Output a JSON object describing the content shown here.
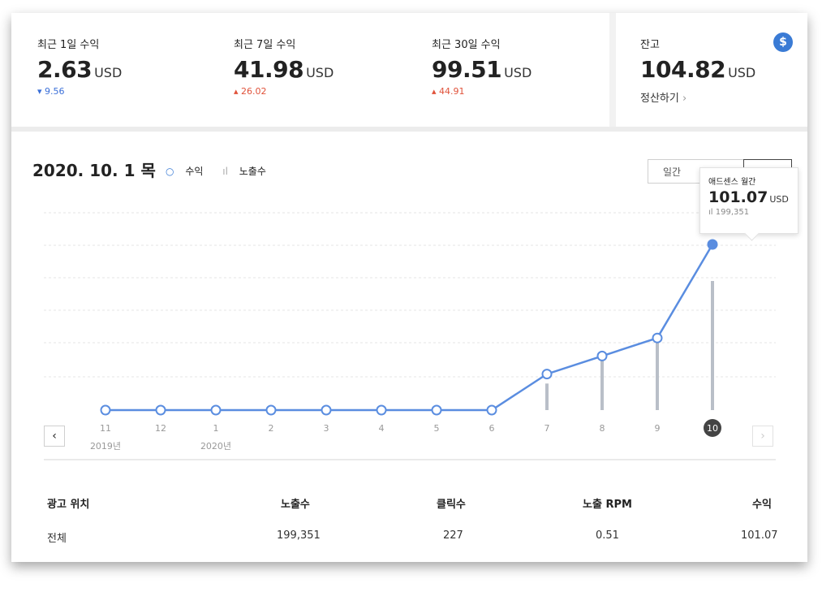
{
  "stats": [
    {
      "label": "최근 1일 수익",
      "value": "2.63",
      "unit": "USD",
      "change": "9.56",
      "direction": "down"
    },
    {
      "label": "최근 7일 수익",
      "value": "41.98",
      "unit": "USD",
      "change": "26.02",
      "direction": "up"
    },
    {
      "label": "최근 30일 수익",
      "value": "99.51",
      "unit": "USD",
      "change": "44.91",
      "direction": "up"
    }
  ],
  "balance": {
    "label": "잔고",
    "value": "104.82",
    "unit": "USD",
    "settle_link": "정산하기",
    "icon": "dollar-icon"
  },
  "header": {
    "date": "2020. 10. 1 목",
    "legend_revenue": "수익",
    "legend_impressions": "노출수",
    "btn_daily": "일간"
  },
  "tooltip": {
    "title": "애드센스 월간",
    "value": "101.07",
    "unit": "USD",
    "impressions": "199,351"
  },
  "chart_data": {
    "type": "line",
    "categories": [
      "11",
      "12",
      "1",
      "2",
      "3",
      "4",
      "5",
      "6",
      "7",
      "8",
      "9",
      "10"
    ],
    "year_labels": [
      {
        "index": 0,
        "text": "2019년"
      },
      {
        "index": 2,
        "text": "2020년"
      }
    ],
    "selected_index": 11,
    "series": [
      {
        "name": "수익",
        "type": "line",
        "values": [
          0,
          0,
          0,
          0,
          0,
          0,
          0,
          0,
          22,
          33,
          44,
          101.07
        ]
      },
      {
        "name": "노출수",
        "type": "bar",
        "values": [
          0,
          0,
          0,
          0,
          0,
          0,
          0,
          0,
          41000,
          83000,
          116000,
          199351
        ]
      }
    ],
    "grid": true,
    "colors": {
      "line": "#5a8de0",
      "bar": "#b9bfc8",
      "grid": "#e4e4e4"
    }
  },
  "table": {
    "headers": [
      "광고 위치",
      "노출수",
      "클릭수",
      "노출 RPM",
      "수익"
    ],
    "rows": [
      [
        "전체",
        "199,351",
        "227",
        "0.51",
        "101.07"
      ]
    ]
  }
}
